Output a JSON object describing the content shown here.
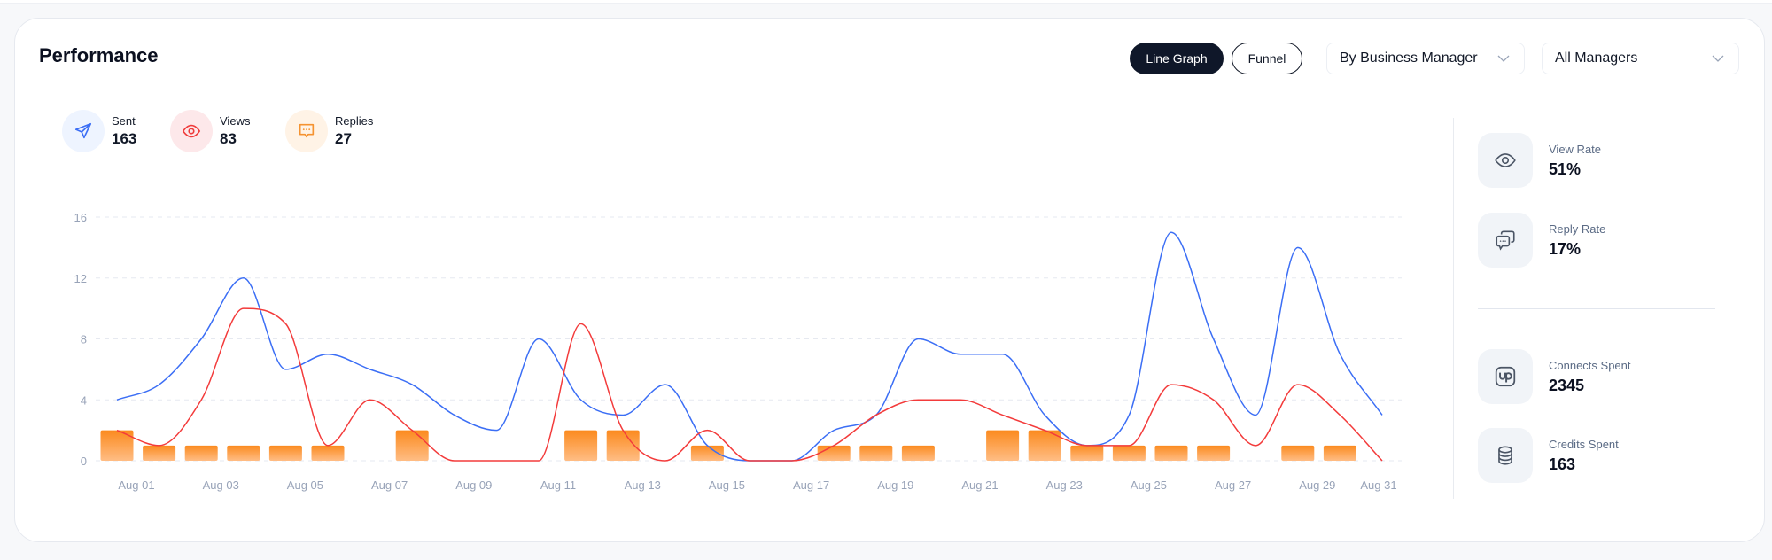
{
  "header": {
    "title": "Performance",
    "view_buttons": [
      "Line Graph",
      "Funnel"
    ],
    "active_view": "Line Graph",
    "group_by": {
      "selected": "By Business Manager"
    },
    "manager_filter": {
      "selected": "All Managers"
    }
  },
  "legend": [
    {
      "label": "Sent",
      "value": "163",
      "icon": "send-icon",
      "color": "#3b6ef5",
      "bg": "#eef4ff"
    },
    {
      "label": "Views",
      "value": "83",
      "icon": "eye-icon",
      "color": "#ef3b3b",
      "bg": "#fde8ea"
    },
    {
      "label": "Replies",
      "value": "27",
      "icon": "chat-icon",
      "color": "#f59331",
      "bg": "#fff3e6"
    }
  ],
  "stats": [
    {
      "label": "View Rate",
      "value": "51%",
      "icon": "eye-icon"
    },
    {
      "label": "Reply Rate",
      "value": "17%",
      "icon": "chat-bubbles-icon"
    },
    {
      "label": "Connects Spent",
      "value": "2345",
      "icon": "upwork-icon"
    },
    {
      "label": "Credits Spent",
      "value": "163",
      "icon": "coins-stack-icon"
    }
  ],
  "chart_data": {
    "type": "line",
    "x": [
      "Aug 01",
      "Aug 02",
      "Aug 03",
      "Aug 04",
      "Aug 05",
      "Aug 06",
      "Aug 07",
      "Aug 08",
      "Aug 09",
      "Aug 10",
      "Aug 11",
      "Aug 12",
      "Aug 13",
      "Aug 14",
      "Aug 15",
      "Aug 16",
      "Aug 17",
      "Aug 18",
      "Aug 19",
      "Aug 20",
      "Aug 21",
      "Aug 22",
      "Aug 23",
      "Aug 24",
      "Aug 25",
      "Aug 26",
      "Aug 27",
      "Aug 28",
      "Aug 29",
      "Aug 30",
      "Aug 31"
    ],
    "xticks": [
      "Aug 01",
      "Aug 03",
      "Aug 05",
      "Aug 07",
      "Aug 09",
      "Aug 11",
      "Aug 13",
      "Aug 15",
      "Aug 17",
      "Aug 19",
      "Aug 21",
      "Aug 23",
      "Aug 25",
      "Aug 27",
      "Aug 29",
      "Aug 31"
    ],
    "yticks": [
      "0",
      "4",
      "8",
      "12",
      "16"
    ],
    "ylim": [
      0,
      16
    ],
    "grid": true,
    "series": [
      {
        "name": "Sent",
        "kind": "line",
        "color": "#3b6ef5",
        "values": [
          4,
          5,
          8,
          12,
          6,
          7,
          6,
          5,
          3,
          2,
          8,
          4,
          3,
          5,
          1,
          0,
          0,
          2,
          3,
          8,
          7,
          7,
          3,
          1,
          3,
          15,
          8,
          3,
          14,
          7,
          3
        ]
      },
      {
        "name": "Views",
        "kind": "line",
        "color": "#f33b3b",
        "values": [
          2,
          1,
          4,
          10,
          9,
          1,
          4,
          2,
          0,
          0,
          0,
          9,
          2,
          0,
          2,
          0,
          0,
          1,
          3,
          4,
          4,
          3,
          2,
          1,
          1,
          5,
          4,
          1,
          5,
          3,
          0
        ]
      },
      {
        "name": "Replies",
        "kind": "bar",
        "color": "#fb8a1e",
        "values": [
          2,
          1,
          1,
          1,
          1,
          1,
          0,
          2,
          0,
          0,
          0,
          2,
          2,
          0,
          1,
          0,
          0,
          1,
          1,
          1,
          0,
          2,
          2,
          1,
          1,
          1,
          1,
          0,
          1,
          1,
          0
        ]
      }
    ]
  }
}
